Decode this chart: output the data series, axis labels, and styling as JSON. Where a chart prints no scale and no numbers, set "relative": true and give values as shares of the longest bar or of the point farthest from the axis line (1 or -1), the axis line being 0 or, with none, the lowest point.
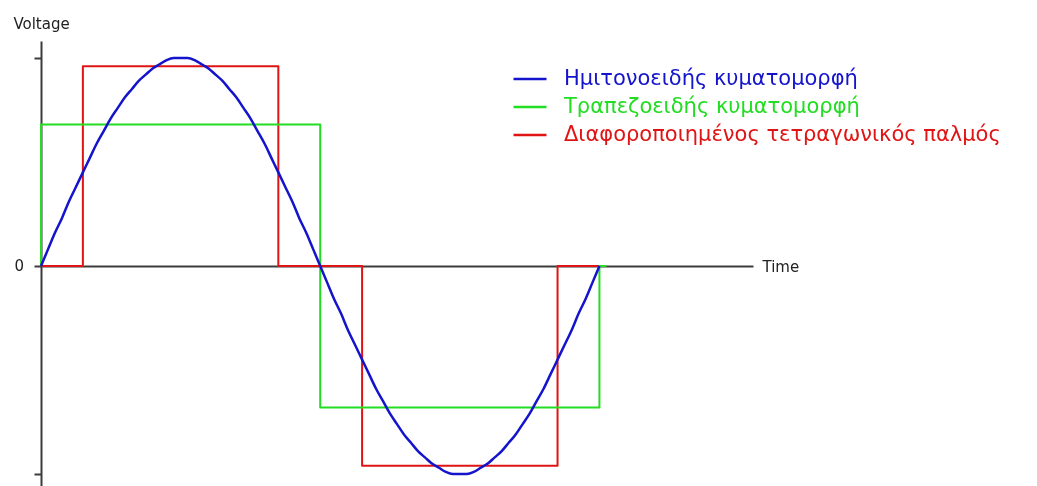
{
  "chart_data": {
    "type": "line",
    "relative": true,
    "xlabel": "Time",
    "ylabel": "Voltage",
    "categories": [
      null,
      null,
      null,
      null,
      null,
      null,
      null,
      null,
      null,
      null,
      null,
      null,
      null,
      null,
      null,
      null,
      null,
      null,
      null,
      null,
      null,
      null,
      null,
      null,
      null,
      null,
      null,
      null,
      null,
      null,
      null,
      null,
      null,
      null,
      null,
      null,
      null,
      null,
      null,
      null,
      null,
      null,
      null,
      null,
      null,
      null,
      null,
      null,
      null,
      null,
      null,
      null,
      null,
      null,
      null,
      null,
      null,
      null,
      null,
      null,
      null,
      null,
      null,
      null,
      null,
      null,
      null,
      null,
      null,
      null,
      null,
      null,
      null,
      null,
      null,
      null,
      null,
      null,
      null,
      null,
      null,
      null,
      null,
      null,
      null,
      null,
      null,
      null,
      null,
      null,
      null,
      null,
      null,
      null,
      null,
      null,
      null,
      null,
      null,
      null,
      null,
      null,
      null
    ],
    "series": [
      {
        "name": "Ημιτονοειδής κυματομορφή",
        "color": "#1414cc",
        "values": [
          0,
          0.08,
          0.16,
          0.23,
          0.31,
          0.38,
          0.45,
          0.52,
          0.59,
          0.65,
          0.71,
          0.76,
          0.81,
          0.85,
          0.89,
          0.92,
          0.95,
          0.97,
          0.99,
          1,
          1,
          1,
          0.99,
          0.97,
          0.95,
          0.92,
          0.89,
          0.85,
          0.81,
          0.76,
          0.71,
          0.65,
          0.59,
          0.52,
          0.45,
          0.38,
          0.31,
          0.23,
          0.16,
          0.08,
          0,
          -0.08,
          -0.16,
          -0.23,
          -0.31,
          -0.38,
          -0.45,
          -0.52,
          -0.59,
          -0.65,
          -0.71,
          -0.76,
          -0.81,
          -0.85,
          -0.89,
          -0.92,
          -0.95,
          -0.97,
          -0.99,
          -1,
          -1,
          -1,
          -0.99,
          -0.97,
          -0.95,
          -0.92,
          -0.89,
          -0.85,
          -0.81,
          -0.76,
          -0.71,
          -0.65,
          -0.59,
          -0.52,
          -0.45,
          -0.38,
          -0.31,
          -0.23,
          -0.16,
          -0.08,
          0,
          null,
          null,
          null,
          null,
          null,
          null,
          null,
          null,
          null,
          null,
          null,
          null,
          null,
          null,
          null,
          null,
          null,
          null,
          null,
          null,
          null,
          null
        ]
      },
      {
        "name": "Τραπεζοειδής κυματομορφή",
        "type": "step",
        "color": "#22dd22",
        "values": [
          0,
          0.68,
          0.68,
          0.68,
          0.68,
          0.68,
          0.68,
          0.68,
          0.68,
          0.68,
          0.68,
          0.68,
          0.68,
          0.68,
          0.68,
          0.68,
          0.68,
          0.68,
          0.68,
          0.68,
          0.68,
          0.68,
          0.68,
          0.68,
          0.68,
          0.68,
          0.68,
          0.68,
          0.68,
          0.68,
          0.68,
          0.68,
          0.68,
          0.68,
          0.68,
          0.68,
          0.68,
          0.68,
          0.68,
          0.68,
          0.68,
          -0.68,
          -0.68,
          -0.68,
          -0.68,
          -0.68,
          -0.68,
          -0.68,
          -0.68,
          -0.68,
          -0.68,
          -0.68,
          -0.68,
          -0.68,
          -0.68,
          -0.68,
          -0.68,
          -0.68,
          -0.68,
          -0.68,
          -0.68,
          -0.68,
          -0.68,
          -0.68,
          -0.68,
          -0.68,
          -0.68,
          -0.68,
          -0.68,
          -0.68,
          -0.68,
          -0.68,
          -0.68,
          -0.68,
          -0.68,
          -0.68,
          -0.68,
          -0.68,
          -0.68,
          -0.68,
          -0.68,
          0,
          null,
          null,
          null,
          null,
          null,
          null,
          null,
          null,
          null,
          null,
          null,
          null,
          null,
          null,
          null,
          null,
          null,
          null,
          null,
          null,
          null
        ]
      },
      {
        "name": "Διαφοροποιημένος τετραγωνικός παλμός",
        "type": "step",
        "color": "#e01414",
        "values": [
          0,
          0,
          0,
          0,
          0,
          0,
          0,
          0.96,
          0.96,
          0.96,
          0.96,
          0.96,
          0.96,
          0.96,
          0.96,
          0.96,
          0.96,
          0.96,
          0.96,
          0.96,
          0.96,
          0.96,
          0.96,
          0.96,
          0.96,
          0.96,
          0.96,
          0.96,
          0.96,
          0.96,
          0.96,
          0.96,
          0.96,
          0.96,
          0.96,
          0,
          0,
          0,
          0,
          0,
          0,
          0,
          0,
          0,
          0,
          0,
          0,
          -0.96,
          -0.96,
          -0.96,
          -0.96,
          -0.96,
          -0.96,
          -0.96,
          -0.96,
          -0.96,
          -0.96,
          -0.96,
          -0.96,
          -0.96,
          -0.96,
          -0.96,
          -0.96,
          -0.96,
          -0.96,
          -0.96,
          -0.96,
          -0.96,
          -0.96,
          -0.96,
          -0.96,
          -0.96,
          -0.96,
          -0.96,
          -0.96,
          0,
          0,
          0,
          0,
          0,
          0,
          null,
          null,
          null,
          null,
          null,
          null,
          null,
          null,
          null,
          null,
          null,
          null,
          null,
          null,
          null,
          null,
          null,
          null,
          null,
          null,
          null,
          null
        ]
      }
    ],
    "legend": "top right",
    "annotations": [
      "0"
    ]
  }
}
